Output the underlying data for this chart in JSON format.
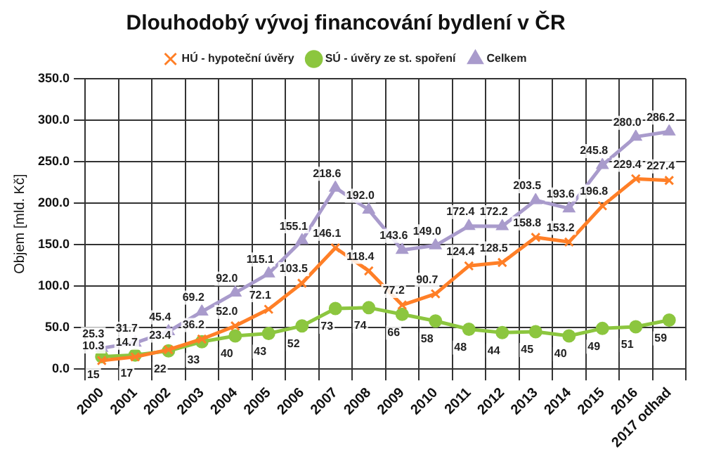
{
  "chart_data": {
    "type": "line",
    "title": "Dlouhodobý vývoj financování bydlení v ČR",
    "ylabel": "Objem [mld. Kč]",
    "categories": [
      "2000",
      "2001",
      "2002",
      "2003",
      "2004",
      "2005",
      "2006",
      "2007",
      "2008",
      "2009",
      "2010",
      "2011",
      "2012",
      "2013",
      "2014",
      "2015",
      "2016",
      "2017 odhad"
    ],
    "series": [
      {
        "name": "HÚ - hypoteční úvěry",
        "color": "#ff7f27",
        "marker": "cross",
        "values": [
          10.3,
          14.7,
          23.4,
          36.2,
          52.0,
          72.1,
          103.5,
          146.1,
          118.4,
          77.2,
          90.7,
          124.4,
          128.5,
          158.8,
          153.2,
          196.8,
          229.4,
          227.4
        ],
        "value_labels": [
          "10.3",
          "14.7",
          "23.4",
          "36.2",
          "52.0",
          "72.1",
          "103.5",
          "146.1",
          "118.4",
          "77.2",
          "90.7",
          "124.4",
          "128.5",
          "158.8",
          "153.2",
          "196.8",
          "229.4",
          "227.4"
        ]
      },
      {
        "name": "SÚ - úvěry ze st. spoření",
        "color": "#8cc63f",
        "marker": "circle",
        "values": [
          15,
          17,
          22,
          33,
          40,
          43,
          52,
          73,
          74,
          66,
          58,
          48,
          44,
          45,
          40,
          49,
          51,
          59
        ],
        "value_labels": [
          "15",
          "17",
          "22",
          "33",
          "40",
          "43",
          "52",
          "73",
          "74",
          "66",
          "58",
          "48",
          "44",
          "45",
          "40",
          "49",
          "51",
          "59"
        ]
      },
      {
        "name": "Celkem",
        "color": "#a99bcc",
        "marker": "triangle",
        "values": [
          25.3,
          31.7,
          45.4,
          69.2,
          92.0,
          115.1,
          155.1,
          218.6,
          192.0,
          143.6,
          149.0,
          172.4,
          172.2,
          203.5,
          193.6,
          245.8,
          280.0,
          286.2
        ],
        "value_labels": [
          "25.3",
          "31.7",
          "45.4",
          "69.2",
          "92.0",
          "115.1",
          "155.1",
          "218.6",
          "192.0",
          "143.6",
          "149.0",
          "172.4",
          "172.2",
          "203.5",
          "193.6",
          "245.8",
          "280.0",
          "286.2"
        ]
      }
    ],
    "ylim": [
      0,
      350
    ],
    "yticks": [
      {
        "value": 0,
        "label": "0.0"
      },
      {
        "value": 50,
        "label": "50.0"
      },
      {
        "value": 100,
        "label": "100.0"
      },
      {
        "value": 150,
        "label": "150.0"
      },
      {
        "value": 200,
        "label": "200.0"
      },
      {
        "value": 250,
        "label": "250.0"
      },
      {
        "value": 300,
        "label": "300.0"
      },
      {
        "value": 350,
        "label": "350.0"
      }
    ],
    "grid": true,
    "legend": "top"
  }
}
